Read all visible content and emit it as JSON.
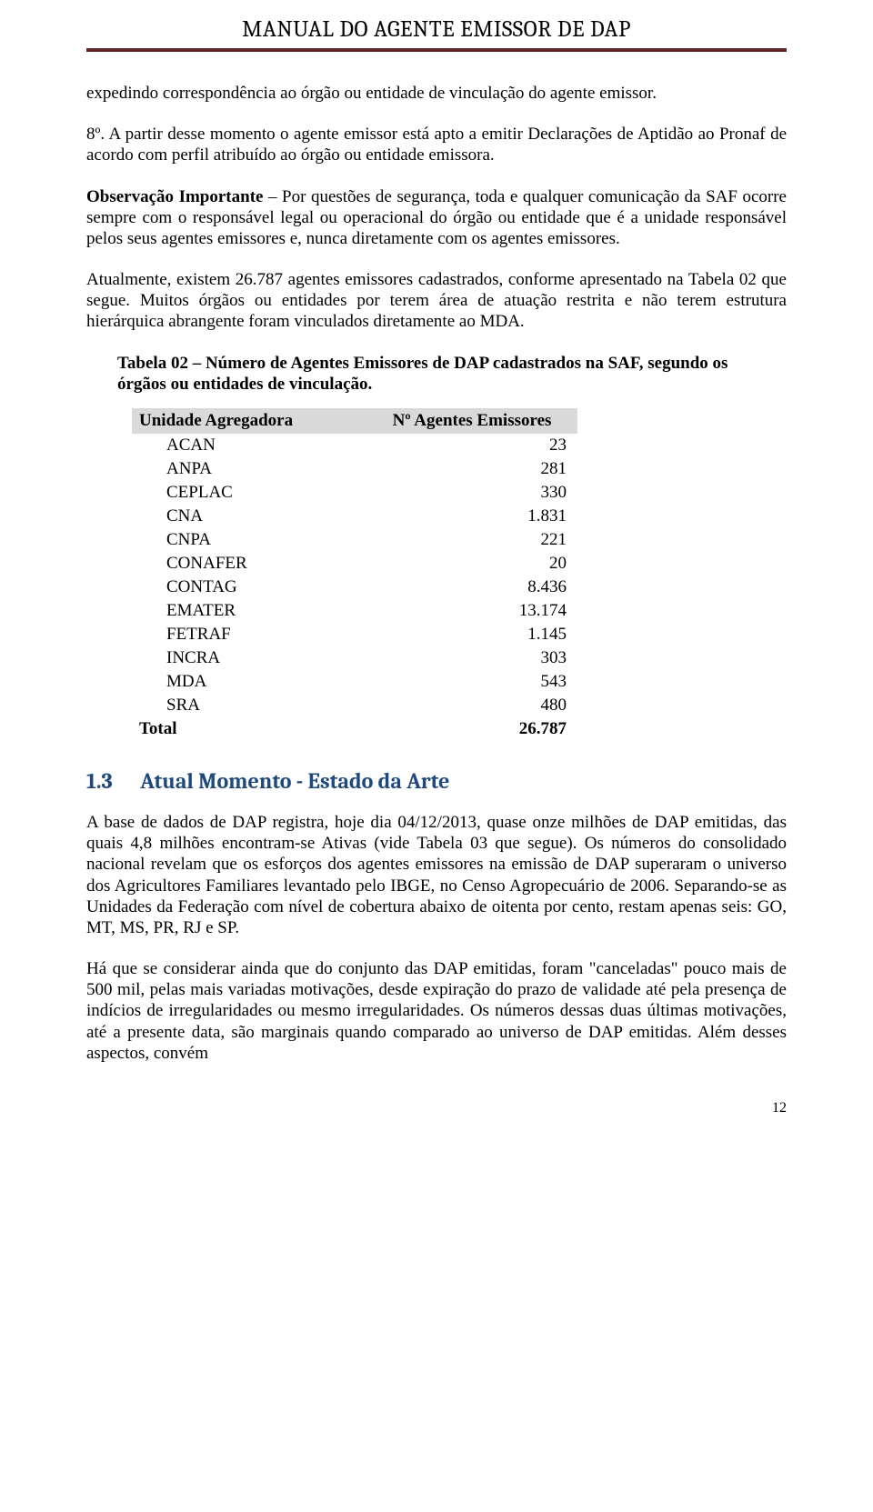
{
  "header": {
    "title": "MANUAL DO AGENTE EMISSOR DE DAP"
  },
  "para1": "expedindo correspondência ao órgão ou entidade de vinculação do agente emissor.",
  "para2": "8º. A partir desse momento o agente emissor está apto a emitir Declarações de Aptidão ao Pronaf de acordo com perfil atribuído ao órgão ou entidade emissora.",
  "para3_lead": "Observação Importante",
  "para3_rest": " – Por questões de segurança, toda e qualquer comunicação da SAF ocorre sempre com o responsável legal ou operacional do órgão ou entidade que é a unidade responsável pelos seus agentes emissores e, nunca diretamente com os agentes emissores.",
  "para4": "Atualmente, existem 26.787 agentes emissores cadastrados, conforme apresentado na Tabela 02 que segue. Muitos órgãos ou entidades por terem área de atuação restrita e não terem estrutura hierárquica abrangente foram vinculados diretamente ao MDA.",
  "table": {
    "caption": "Tabela 02 – Número de Agentes Emissores de DAP cadastrados na SAF, segundo os órgãos ou entidades de vinculação.",
    "col1": "Unidade Agregadora",
    "col2": "Nº Agentes Emissores",
    "rows": [
      {
        "label": "ACAN",
        "value": "23"
      },
      {
        "label": "ANPA",
        "value": "281"
      },
      {
        "label": "CEPLAC",
        "value": "330"
      },
      {
        "label": "CNA",
        "value": "1.831"
      },
      {
        "label": "CNPA",
        "value": "221"
      },
      {
        "label": "CONAFER",
        "value": "20"
      },
      {
        "label": "CONTAG",
        "value": "8.436"
      },
      {
        "label": "EMATER",
        "value": "13.174"
      },
      {
        "label": "FETRAF",
        "value": "1.145"
      },
      {
        "label": "INCRA",
        "value": "303"
      },
      {
        "label": "MDA",
        "value": "543"
      },
      {
        "label": "SRA",
        "value": "480"
      }
    ],
    "total_label": "Total",
    "total_value": "26.787"
  },
  "section": {
    "num": "1.3",
    "title": "Atual Momento - Estado da Arte"
  },
  "para5": "A base de dados de DAP registra, hoje dia 04/12/2013, quase onze milhões de DAP emitidas, das quais 4,8 milhões encontram-se Ativas (vide Tabela 03 que segue). Os números do consolidado nacional revelam que os esforços dos agentes emissores na emissão de DAP superaram o universo dos Agricultores Familiares levantado pelo IBGE, no Censo Agropecuário de 2006.  Separando-se as Unidades da Federação com nível de cobertura abaixo de oitenta por cento, restam apenas seis: GO, MT, MS, PR, RJ e SP.",
  "para6": "Há que se considerar ainda que do conjunto das DAP emitidas, foram \"canceladas\" pouco mais de 500 mil, pelas mais variadas motivações, desde expiração do prazo de validade até pela presença de indícios de irregularidades ou mesmo irregularidades. Os números dessas duas últimas motivações, até a presente data, são marginais quando comparado ao universo de DAP emitidas.  Além desses aspectos, convém",
  "page_number": "12",
  "colors": {
    "header_rule": "#632423",
    "section_heading": "#1f497d",
    "table_header_bg": "#d9d9d9"
  }
}
